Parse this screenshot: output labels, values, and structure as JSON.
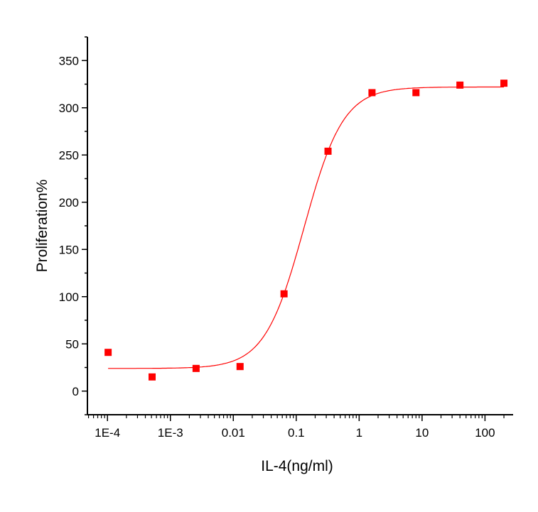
{
  "chart_data": {
    "type": "scatter",
    "title": "",
    "xlabel": "IL-4(ng/ml)",
    "ylabel": "Proliferation%",
    "x_scale": "log",
    "xlim": [
      4.8e-05,
      280
    ],
    "ylim": [
      -25,
      375
    ],
    "grid": false,
    "legend": "none",
    "x_ticks": [
      {
        "value": 0.0001,
        "label": "1E-4"
      },
      {
        "value": 0.001,
        "label": "1E-3"
      },
      {
        "value": 0.01,
        "label": "0.01"
      },
      {
        "value": 0.1,
        "label": "0.1"
      },
      {
        "value": 1,
        "label": "1"
      },
      {
        "value": 10,
        "label": "10"
      },
      {
        "value": 100,
        "label": "100"
      }
    ],
    "y_ticks": [
      {
        "value": 0,
        "label": "0"
      },
      {
        "value": 50,
        "label": "50"
      },
      {
        "value": 100,
        "label": "100"
      },
      {
        "value": 150,
        "label": "150"
      },
      {
        "value": 200,
        "label": "200"
      },
      {
        "value": 250,
        "label": "250"
      },
      {
        "value": 300,
        "label": "300"
      },
      {
        "value": 350,
        "label": "350"
      }
    ],
    "points": {
      "x": [
        0.0001024,
        0.000512,
        0.00256,
        0.0128,
        0.064,
        0.32,
        1.6,
        8,
        40,
        200
      ],
      "y": [
        41,
        15,
        24,
        26,
        103,
        254,
        316,
        316,
        324,
        326
      ],
      "color": "#ff0000",
      "marker": "square"
    },
    "fit_curve": {
      "model": "4PL",
      "bottom": 24,
      "top": 322,
      "ec50": 0.133,
      "hill": 1.39,
      "color": "#ff0000"
    }
  }
}
